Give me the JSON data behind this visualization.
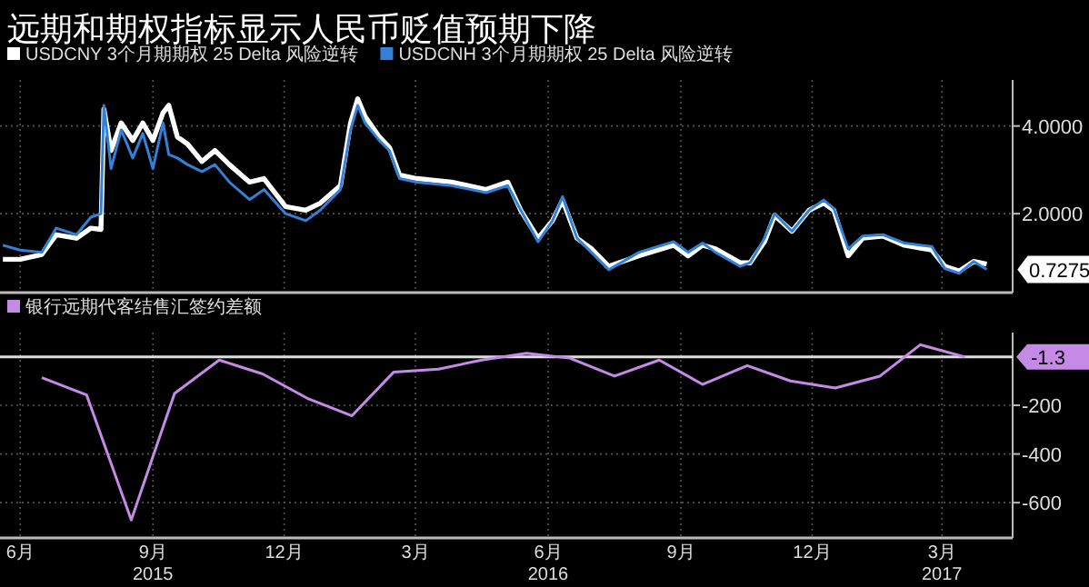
{
  "chart_data": [
    {
      "type": "line",
      "title": "远期和期权指标显示人民币贬值预期下降",
      "legend": "top left",
      "grid": true,
      "tick_labels": "y",
      "x": [
        "2015-06-03",
        "2015-06-15",
        "2015-06-30",
        "2015-07-10",
        "2015-07-24",
        "2015-08-03",
        "2015-08-10",
        "2015-08-12",
        "2015-08-17",
        "2015-08-24",
        "2015-09-01",
        "2015-09-08",
        "2015-09-15",
        "2015-09-22",
        "2015-09-26",
        "2015-10-02",
        "2015-10-09",
        "2015-10-19",
        "2015-10-28",
        "2015-11-07",
        "2015-11-21",
        "2015-12-01",
        "2015-12-16",
        "2015-12-30",
        "2016-01-09",
        "2016-01-23",
        "2016-01-30",
        "2016-02-04",
        "2016-02-09",
        "2016-02-19",
        "2016-02-26",
        "2016-03-04",
        "2016-03-16",
        "2016-04-09",
        "2016-05-03",
        "2016-05-18",
        "2016-05-27",
        "2016-06-08",
        "2016-06-18",
        "2016-06-25",
        "2016-07-05",
        "2016-07-15",
        "2016-07-27",
        "2016-08-17",
        "2016-09-10",
        "2016-09-20",
        "2016-09-30",
        "2016-10-09",
        "2016-10-26",
        "2016-11-02",
        "2016-11-12",
        "2016-11-19",
        "2016-12-01",
        "2016-12-13",
        "2016-12-23",
        "2016-12-30",
        "2017-01-09",
        "2017-01-19",
        "2017-02-02",
        "2017-02-17",
        "2017-03-08",
        "2017-03-17",
        "2017-03-27",
        "2017-04-06",
        "2017-04-15"
      ],
      "series": [
        {
          "name": "USDCNY 3个月期期权 25 Delta 风险逆转",
          "color": "#ffffff",
          "values": [
            0.96,
            0.96,
            1.07,
            1.52,
            1.44,
            1.67,
            1.64,
            4.38,
            3.44,
            4.07,
            3.67,
            4.07,
            3.67,
            4.3,
            4.47,
            3.75,
            3.59,
            3.19,
            3.44,
            3.12,
            2.72,
            2.8,
            2.16,
            2.08,
            2.24,
            2.64,
            4.07,
            4.62,
            4.22,
            3.75,
            3.51,
            2.88,
            2.8,
            2.72,
            2.55,
            2.72,
            2.08,
            1.44,
            1.84,
            2.31,
            1.44,
            1.2,
            0.8,
            1.04,
            1.28,
            1.04,
            1.28,
            1.2,
            0.88,
            0.88,
            1.36,
            1.96,
            1.6,
            2.08,
            2.24,
            2.08,
            1.04,
            1.44,
            1.49,
            1.28,
            1.17,
            0.8,
            0.69,
            0.91,
            0.85
          ]
        },
        {
          "name": "USDCNH 3个月期期权 25 Delta 风险逆转",
          "color": "#3380d8",
          "values": [
            1.28,
            1.17,
            1.12,
            1.67,
            1.52,
            1.92,
            2.0,
            4.47,
            3.03,
            3.91,
            3.27,
            3.83,
            3.03,
            4.07,
            3.35,
            3.27,
            3.12,
            2.96,
            3.12,
            2.72,
            2.32,
            2.55,
            2.0,
            1.84,
            2.08,
            2.55,
            3.91,
            4.47,
            4.07,
            3.67,
            3.44,
            2.8,
            2.72,
            2.64,
            2.48,
            2.64,
            2.08,
            1.36,
            1.84,
            2.39,
            1.44,
            1.12,
            0.72,
            1.12,
            1.36,
            1.12,
            1.33,
            1.12,
            0.8,
            0.88,
            1.44,
            2.0,
            1.6,
            2.08,
            2.31,
            2.12,
            1.2,
            1.49,
            1.52,
            1.33,
            1.25,
            0.75,
            0.64,
            0.91,
            0.7275
          ]
        }
      ],
      "annotations": [
        {
          "text": "0.7275",
          "x": "2017-04-15",
          "y": 0.7275
        }
      ],
      "xlim": [
        "2015-06-01",
        "2017-05-03"
      ],
      "ylim": [
        0.2,
        5.05
      ],
      "xticks": [
        {
          "value": "2015-06-15",
          "label": null
        },
        {
          "value": "2015-09-15",
          "label": null
        },
        {
          "value": "2015-12-15",
          "label": null
        },
        {
          "value": "2016-03-15",
          "label": null
        },
        {
          "value": "2016-06-15",
          "label": null
        },
        {
          "value": "2016-09-15",
          "label": null
        },
        {
          "value": "2016-12-15",
          "label": null
        },
        {
          "value": "2017-03-15",
          "label": null
        }
      ],
      "yticks": [
        {
          "value": 2,
          "label": "2.0000"
        },
        {
          "value": 4,
          "label": "4.0000"
        }
      ]
    },
    {
      "type": "line",
      "legend": "top left",
      "grid": true,
      "x": [
        "2015-06-30",
        "2015-07-31",
        "2015-08-31",
        "2015-09-30",
        "2015-10-31",
        "2015-11-30",
        "2015-12-31",
        "2016-01-31",
        "2016-02-29",
        "2016-03-31",
        "2016-04-30",
        "2016-05-31",
        "2016-06-30",
        "2016-07-31",
        "2016-08-31",
        "2016-09-30",
        "2016-10-31",
        "2016-11-30",
        "2016-12-31",
        "2017-01-31",
        "2017-02-28",
        "2017-03-31"
      ],
      "series": [
        {
          "name": "银行远期代客结售汇签约差额",
          "color": "#c48ae6",
          "values": [
            -86,
            -157,
            -671,
            -151,
            -14,
            -71,
            -171,
            -243,
            -63,
            -51,
            -14,
            14,
            -6,
            -80,
            -14,
            -114,
            -37,
            -100,
            -129,
            -80,
            49,
            -1.3
          ]
        }
      ],
      "ref_lines": [
        {
          "axis": "y",
          "value": -1.3,
          "label": "-1.3",
          "color": "#dddddd"
        }
      ],
      "xlim": [
        "2015-06-01",
        "2017-05-03"
      ],
      "ylim": [
        -745,
        99
      ],
      "xticks": [
        {
          "value": "2015-06-15",
          "label": "6月"
        },
        {
          "value": "2015-09-15",
          "label": "9月\n2015"
        },
        {
          "value": "2015-12-15",
          "label": "12月"
        },
        {
          "value": "2016-03-15",
          "label": "3月"
        },
        {
          "value": "2016-06-15",
          "label": "6月\n2016"
        },
        {
          "value": "2016-09-15",
          "label": "9月"
        },
        {
          "value": "2016-12-15",
          "label": "12月"
        },
        {
          "value": "2017-03-15",
          "label": "3月\n2017"
        }
      ],
      "yticks": [
        -200,
        -400,
        -600
      ]
    }
  ]
}
